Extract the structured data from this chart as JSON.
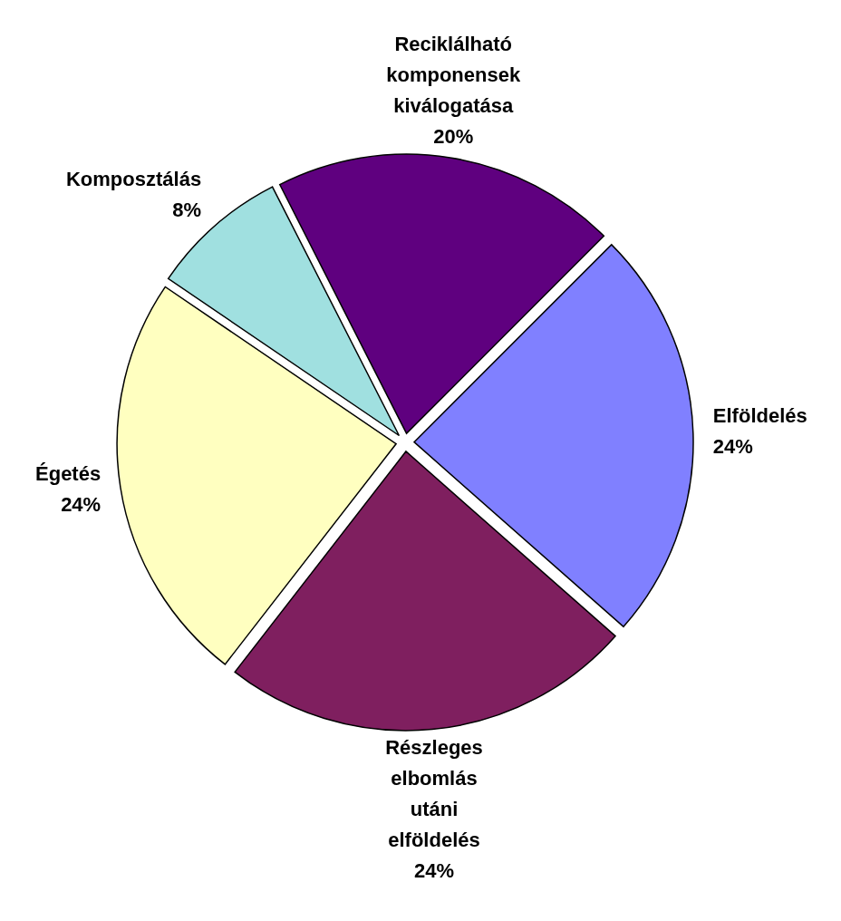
{
  "chart_data": {
    "type": "pie",
    "categories": [
      "Reciklálható komponensek kiválogatása",
      "Elföldelés",
      "Részleges elbomlás utáni elföldelés",
      "Égetés",
      "Komposztálás"
    ],
    "values": [
      20,
      24,
      24,
      24,
      8
    ],
    "colors": [
      "#5f007f",
      "#8080ff",
      "#7f1f5f",
      "#ffffc0",
      "#a0e0e0"
    ],
    "value_labels": [
      "20%",
      "24%",
      "24%",
      "24%",
      "8%"
    ]
  }
}
